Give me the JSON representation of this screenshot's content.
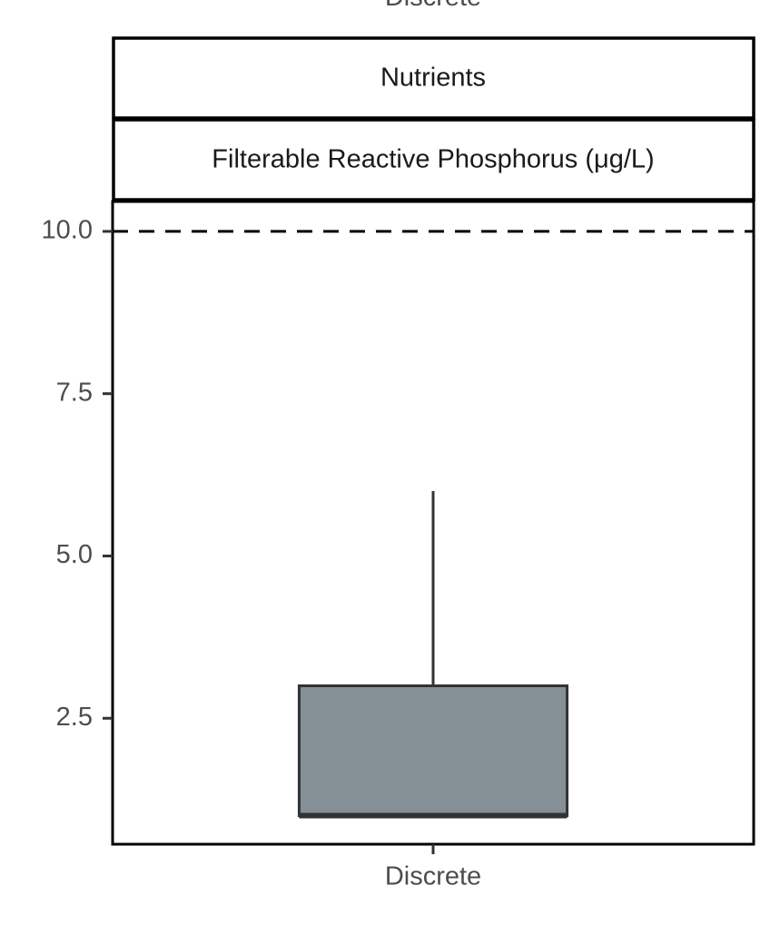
{
  "chart_data": {
    "type": "box",
    "facet_label": "Discrete",
    "strips": [
      "Nutrients",
      "Filterable Reactive Phosphorus (μg/L)"
    ],
    "categories": [
      "Discrete"
    ],
    "series": [
      {
        "color": "#848f96",
        "min": [
          1.0
        ],
        "q1": [
          1.0
        ],
        "median": [
          1.0
        ],
        "q3": [
          3.0
        ],
        "max": [
          6.0
        ]
      }
    ],
    "ylim": [
      0.56,
      10.46
    ],
    "yticks": [
      2.5,
      {
        "value": 5,
        "label": "5.0"
      },
      7.5,
      {
        "value": 10,
        "label": "10.0"
      }
    ],
    "hline": 10,
    "grid": false
  }
}
